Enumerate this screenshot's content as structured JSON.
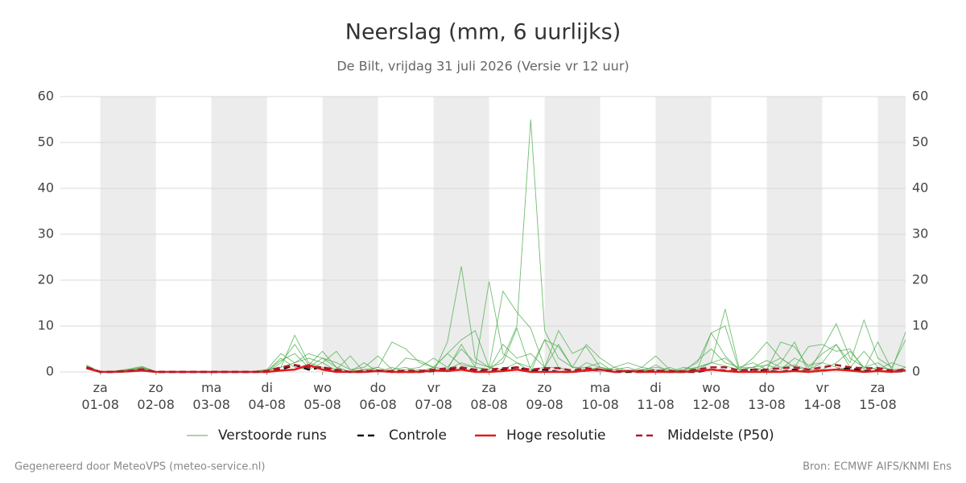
{
  "chart_data": {
    "type": "line",
    "title": "Neerslag (mm, 6 uurlijks)",
    "subtitle": "De Bilt, vrijdag 31 juli 2026 (Versie vr 12 uur)",
    "footer_left": "Gegenereerd door MeteoVPS (meteo-service.nl)",
    "footer_right": "Bron: ECMWF AIFS/KNMI Ens",
    "xlim": [
      -0.72,
      14.5
    ],
    "ylim": [
      0,
      60
    ],
    "yticks": [
      0,
      10,
      20,
      30,
      40,
      50,
      60
    ],
    "grid": true,
    "xticks": [
      {
        "value": 0,
        "label": "za\n01-08"
      },
      {
        "value": 1,
        "label": "zo\n02-08"
      },
      {
        "value": 2,
        "label": "ma\n03-08"
      },
      {
        "value": 3,
        "label": "di\n04-08"
      },
      {
        "value": 4,
        "label": "wo\n05-08"
      },
      {
        "value": 5,
        "label": "do\n06-08"
      },
      {
        "value": 6,
        "label": "vr\n07-08"
      },
      {
        "value": 7,
        "label": "za\n08-08"
      },
      {
        "value": 8,
        "label": "zo\n09-08"
      },
      {
        "value": 9,
        "label": "ma\n10-08"
      },
      {
        "value": 10,
        "label": "di\n11-08"
      },
      {
        "value": 11,
        "label": "wo\n12-08"
      },
      {
        "value": 12,
        "label": "do\n13-08"
      },
      {
        "value": 13,
        "label": "vr\n14-08"
      },
      {
        "value": 14,
        "label": "za\n15-08"
      }
    ],
    "x": [
      -0.25,
      0,
      0.25,
      0.5,
      0.75,
      1,
      1.25,
      1.5,
      1.75,
      2,
      2.25,
      2.5,
      2.75,
      3,
      3.25,
      3.5,
      3.75,
      4,
      4.25,
      4.5,
      4.75,
      5,
      5.25,
      5.5,
      5.75,
      6,
      6.25,
      6.5,
      6.75,
      7,
      7.25,
      7.5,
      7.75,
      8,
      8.25,
      8.5,
      8.75,
      9,
      9.25,
      9.5,
      9.75,
      10,
      10.25,
      10.5,
      10.75,
      11,
      11.25,
      11.5,
      11.75,
      12,
      12.25,
      12.5,
      12.75,
      13,
      13.25,
      13.5,
      13.75,
      14,
      14.25,
      14.5
    ],
    "ensemble": {
      "name": "Verstoorde runs",
      "color": "#4cae4c",
      "members": [
        [
          1.2,
          0,
          0,
          0.3,
          0.8,
          0,
          0,
          0,
          0,
          0,
          0,
          0,
          0,
          0.2,
          3,
          1,
          0.5,
          2,
          0.3,
          0,
          0.5,
          0,
          0.2,
          0,
          0,
          1,
          0.5,
          2,
          1,
          0.5,
          3,
          10,
          55,
          9,
          3,
          1,
          0.5,
          0,
          1,
          0.3,
          0,
          0,
          0,
          0.5,
          1,
          2,
          1.3,
          0.5,
          0,
          1.5,
          3,
          1,
          0.5,
          2,
          1,
          0.5,
          0.3,
          1,
          0.5,
          0.2
        ],
        [
          1.5,
          0,
          0.2,
          0.5,
          1,
          0,
          0,
          0,
          0,
          0,
          0,
          0,
          0,
          0.5,
          1,
          8,
          2,
          1,
          0.5,
          3.5,
          0,
          0,
          1,
          0,
          0.5,
          0,
          6.5,
          23,
          3,
          1,
          0.5,
          2,
          0,
          7,
          1,
          0,
          0.5,
          1,
          0,
          0,
          0.5,
          0,
          1,
          0,
          0.5,
          8.5,
          10,
          0.5,
          1,
          0,
          2,
          6.5,
          0,
          5,
          10.5,
          3,
          1,
          0.5,
          2,
          1
        ],
        [
          1,
          0,
          0,
          0.4,
          0.6,
          0,
          0,
          0,
          0,
          0,
          0,
          0.1,
          0,
          0,
          2,
          6,
          1.5,
          4.5,
          1,
          0,
          0.5,
          1,
          6.5,
          5,
          2,
          1,
          0.5,
          6,
          1,
          19.7,
          4,
          2,
          1,
          7,
          5.5,
          1,
          6,
          3,
          1,
          2,
          1,
          3.5,
          0.5,
          0,
          1,
          2,
          13.7,
          1,
          2,
          0.5,
          6.5,
          5.5,
          1,
          4,
          6,
          2,
          11.3,
          3,
          1,
          7
        ],
        [
          0.8,
          0,
          0.1,
          0.2,
          1,
          0,
          0,
          0,
          0,
          0,
          0,
          0,
          0,
          0.3,
          1,
          2,
          4,
          3,
          1,
          0,
          2,
          0,
          0,
          3,
          2.5,
          1,
          4,
          7,
          9,
          1,
          17.6,
          13,
          9.5,
          1,
          9,
          4,
          5.5,
          1,
          0.5,
          1,
          0,
          1.5,
          0,
          0.5,
          2,
          8.5,
          3.5,
          0.5,
          3,
          6.5,
          3,
          1,
          5.5,
          6,
          4.5,
          5,
          0.5,
          6.5,
          0.5,
          8.7
        ],
        [
          1.3,
          0,
          0.2,
          0.6,
          1.2,
          0.1,
          0,
          0,
          0,
          0,
          0,
          0,
          0.1,
          0.5,
          4,
          2,
          3,
          2,
          4.5,
          0.5,
          1,
          3.5,
          0.5,
          1,
          0,
          1,
          4,
          1.5,
          1,
          0.5,
          6,
          3,
          4,
          1,
          1,
          0,
          2,
          1,
          0.5,
          0,
          1,
          0.5,
          0,
          1,
          0.5,
          2,
          3,
          0.5,
          1,
          2.5,
          1,
          1.5,
          0.5,
          0.5,
          2,
          4.5,
          1,
          2,
          0,
          1
        ],
        [
          0.9,
          0,
          0.1,
          0.3,
          0.5,
          0,
          0,
          0,
          0,
          0,
          0,
          0,
          0,
          0.2,
          2.5,
          4,
          1,
          3,
          2,
          0.5,
          0,
          1,
          0,
          0.5,
          1,
          3,
          1,
          5,
          2,
          1,
          2,
          9.5,
          0.5,
          1,
          6,
          1,
          1,
          2,
          0,
          0,
          0.5,
          1,
          0.5,
          0,
          2.5,
          5,
          2,
          1,
          1,
          1.5,
          0.5,
          3,
          1.5,
          2,
          6,
          1,
          4.5,
          1,
          0.5,
          0.5
        ]
      ]
    },
    "series": [
      {
        "name": "Controle",
        "color": "#111111",
        "dash": true,
        "values": [
          1,
          0,
          0,
          0.2,
          0.5,
          0,
          0,
          0,
          0,
          0,
          0,
          0,
          0,
          0,
          0.5,
          1.5,
          0.5,
          1,
          0.2,
          0,
          0,
          0.3,
          0,
          0,
          0,
          0.2,
          0.5,
          0.8,
          0.3,
          0,
          0.5,
          1,
          0.2,
          0.5,
          0,
          0,
          0.3,
          0.5,
          0,
          0,
          0,
          0.2,
          0,
          0,
          0,
          0.5,
          0.3,
          0,
          0.5,
          0.2,
          0,
          0.5,
          0,
          0.3,
          0.5,
          0.8,
          0.2,
          0.3,
          0,
          0.2
        ]
      },
      {
        "name": "Hoge resolutie",
        "color": "#e31a1c",
        "dash": false,
        "values": [
          0.8,
          0,
          0,
          0.1,
          0.3,
          0,
          0,
          0,
          0,
          0,
          0,
          0,
          0,
          0,
          0.3,
          0.5,
          1.5,
          0.5,
          0,
          0,
          0,
          0.2,
          0,
          0,
          0,
          0.3,
          0.2,
          0.5,
          0,
          0,
          0.2,
          0.5,
          0,
          0,
          0,
          0,
          0.3,
          0.5,
          0,
          0.2,
          0,
          0,
          0,
          0,
          0.2,
          0.5,
          0.2,
          0,
          0,
          0,
          0,
          0.2,
          0,
          0.3,
          0.5,
          0.3,
          0,
          0.2,
          0,
          0.3
        ]
      },
      {
        "name": "Middelste (P50)",
        "color": "#b2182b",
        "dash": true,
        "values": [
          1,
          0,
          0,
          0.2,
          0.6,
          0,
          0,
          0,
          0,
          0,
          0,
          0,
          0,
          0.2,
          1,
          1.5,
          1,
          1,
          0.5,
          0,
          0.2,
          0.3,
          0.2,
          0.3,
          0.2,
          0.5,
          0.8,
          1,
          0.5,
          0.5,
          0.8,
          1,
          0.5,
          0.8,
          0.8,
          0.3,
          0.8,
          0.5,
          0.2,
          0.2,
          0.2,
          0.3,
          0.2,
          0.1,
          0.5,
          1,
          1,
          0.3,
          0.5,
          0.5,
          0.8,
          1,
          0.5,
          1,
          1.5,
          1,
          0.8,
          0.8,
          0.3,
          0.5
        ]
      }
    ]
  }
}
